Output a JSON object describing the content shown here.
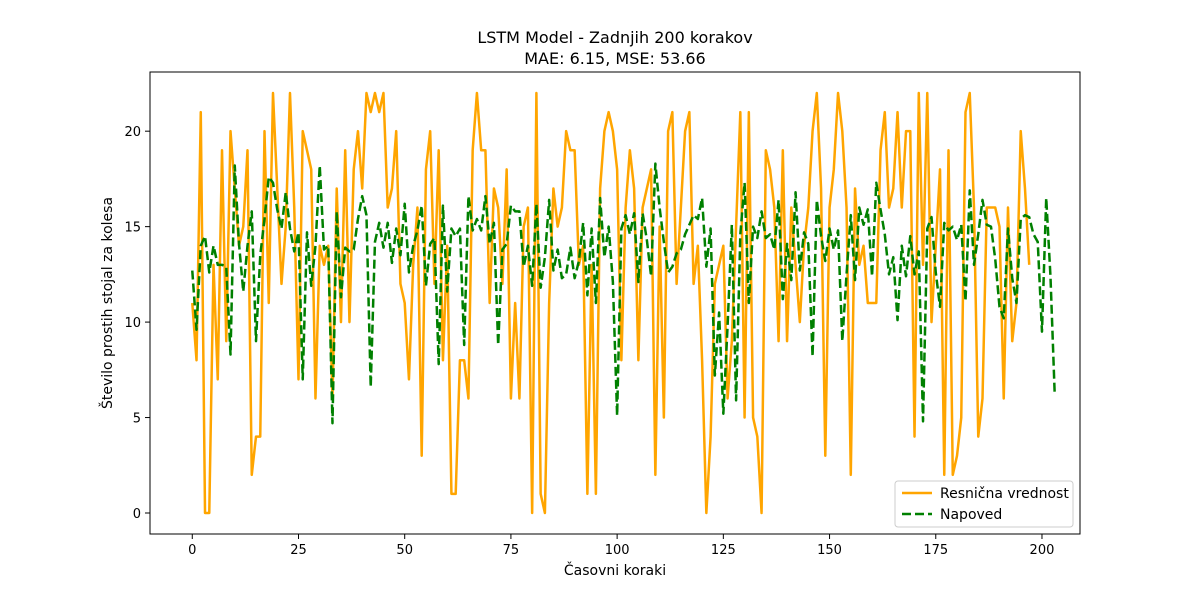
{
  "chart_data": {
    "type": "line",
    "title": "LSTM Model - Zadnjih 200 korakov",
    "subtitle": "MAE: 6.15, MSE: 53.66",
    "xlabel": "Časovni koraki",
    "ylabel": "Število prostih stojal za kolesa",
    "xlim": [
      -9.95,
      208.95
    ],
    "ylim": [
      -1.1,
      23.1
    ],
    "xticks": [
      0,
      25,
      50,
      75,
      100,
      125,
      150,
      175,
      200
    ],
    "yticks": [
      0,
      5,
      10,
      15,
      20
    ],
    "grid": false,
    "legend_position": "lower-right",
    "series": [
      {
        "name": "Resnična vrednost",
        "color": "#FFA500",
        "style": "solid",
        "y": [
          11,
          8,
          21,
          0,
          0,
          13,
          7,
          19,
          9,
          20,
          17,
          14,
          15,
          19,
          2,
          4,
          4,
          20,
          11,
          22,
          17,
          12,
          15,
          22,
          16,
          7,
          20,
          19,
          18,
          6,
          14,
          13,
          14,
          6,
          17,
          10,
          19,
          10,
          18,
          20,
          17,
          22,
          21,
          22,
          21,
          22,
          16,
          17,
          20,
          12,
          11,
          7,
          13,
          16,
          3,
          18,
          20,
          12,
          19,
          8,
          14,
          1,
          1,
          8,
          8,
          6,
          19,
          22,
          19,
          19,
          11,
          17,
          16,
          12,
          18,
          6,
          11,
          6,
          15,
          16,
          0,
          22,
          1,
          0,
          11,
          17,
          15,
          16,
          20,
          19,
          19,
          13,
          14,
          1,
          13,
          1,
          17,
          20,
          21,
          20,
          18,
          8,
          16,
          19,
          17,
          8,
          16,
          17,
          18,
          2,
          15,
          5,
          20,
          21,
          12,
          16,
          20,
          21,
          12,
          14,
          8,
          0,
          4,
          12,
          13,
          14,
          6,
          9,
          15,
          21,
          5,
          21,
          5,
          4,
          0,
          19,
          18,
          16,
          9,
          19,
          9,
          16,
          13,
          10,
          14,
          16,
          20,
          22,
          17,
          3,
          16,
          18,
          22,
          20,
          16,
          2,
          17,
          13,
          14,
          11,
          11,
          11,
          19,
          21,
          16,
          17,
          21,
          16,
          20,
          20,
          4,
          22,
          13,
          22,
          10,
          14,
          18,
          2,
          19,
          2,
          3,
          5,
          21,
          22,
          16,
          4,
          6,
          16,
          16,
          16,
          15,
          6,
          16,
          9,
          11,
          20,
          17,
          13
        ]
      },
      {
        "name": "Napoved",
        "color": "#008000",
        "style": "dashed",
        "y": [
          12.7,
          9.6,
          14,
          14.5,
          12.6,
          14,
          13,
          13,
          12.9,
          8.3,
          18.2,
          14.1,
          11.6,
          14,
          15.8,
          9,
          13.5,
          15.4,
          17.6,
          17.3,
          15.9,
          14.9,
          16.8,
          14.9,
          13.7,
          14.7,
          7,
          14.7,
          11.9,
          14,
          18.2,
          13.8,
          14,
          4.7,
          15.8,
          11.3,
          13.9,
          13.7,
          13.8,
          15.4,
          16.6,
          15.6,
          6.6,
          14.2,
          15.2,
          13.9,
          15.2,
          13.1,
          14.9,
          13.5,
          16.2,
          12.6,
          14,
          14.8,
          16.1,
          11.9,
          14.1,
          14.4,
          7.8,
          16.1,
          11.6,
          14.9,
          14.5,
          14.9,
          8.8,
          16.6,
          14.8,
          15.4,
          14.8,
          16.6,
          14.1,
          15.2,
          8.8,
          13.8,
          14.1,
          16.1,
          15.8,
          15.8,
          12.9,
          14,
          11.9,
          16.2,
          11.8,
          13.4,
          16.4,
          12.7,
          13.8,
          12.3,
          12.5,
          13.9,
          12.3,
          13.2,
          15.2,
          11.4,
          14.9,
          11,
          16.5,
          13.4,
          15,
          12.1,
          5.1,
          14.9,
          15.6,
          14.6,
          15.7,
          12.1,
          15.7,
          14.3,
          12.4,
          18.3,
          16,
          14.2,
          12.6,
          12.9,
          13.6,
          13.8,
          14.6,
          15.1,
          15.6,
          15.4,
          16.5,
          12.9,
          14.9,
          7.2,
          10.5,
          5.2,
          9.8,
          15.1,
          5.9,
          14.6,
          17.3,
          11,
          15,
          14.4,
          15.8,
          14.4,
          14.6,
          13.8,
          16.4,
          11.2,
          14.1,
          12.2,
          16.8,
          12.7,
          14.7,
          14.1,
          8.2,
          16.4,
          14.5,
          13.2,
          14.9,
          13.8,
          14.8,
          9,
          12.5,
          15.6,
          12.2,
          16,
          15.1,
          15.9,
          12.4,
          17.3,
          15.9,
          14.6,
          12.5,
          13.4,
          10.1,
          14,
          12.4,
          14.5,
          12.5,
          13.7,
          4.8,
          14.9,
          15.5,
          12.6,
          10.8,
          15.2,
          14.8,
          15,
          14.3,
          15.1,
          11.1,
          16.9,
          13,
          14.6,
          16.4,
          15.1,
          15,
          13.3,
          10.8,
          10.2,
          14.9,
          12.3,
          11,
          15.4,
          15.6,
          15.5,
          14.6,
          14.2,
          9.5,
          16.5,
          12.4,
          6.2
        ]
      }
    ]
  }
}
